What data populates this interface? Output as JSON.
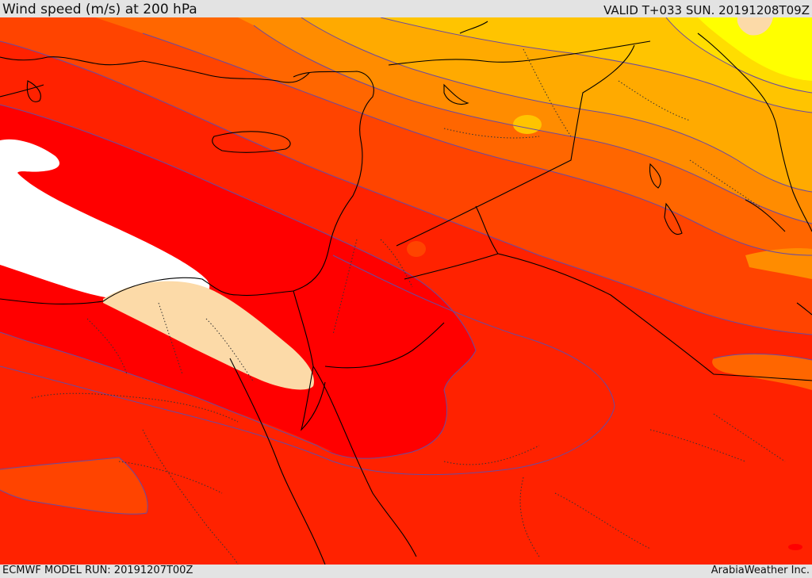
{
  "header": {
    "title": "Wind speed (m/s) at 200 hPa",
    "valid_time": "VALID T+033 SUN. 20191208T09Z"
  },
  "footer": {
    "model_run": "ECMWF MODEL RUN: 20191207T00Z",
    "provider": "ArabiaWeather Inc."
  },
  "map": {
    "field": "wind-speed",
    "colors": {
      "lightest": "#ffffff",
      "peach": "#fcdaa8",
      "red": "#ff0000",
      "red_orange": "#ff2200",
      "orange_red": "#ff4400",
      "orange": "#ff6600",
      "orange_light": "#ff8c00",
      "amber": "#ffaa00",
      "gold": "#ffc400",
      "yellow_gold": "#ffdd00",
      "yellow": "#ffff00",
      "contour": "#6a4aa0",
      "coast": "#000000"
    }
  }
}
